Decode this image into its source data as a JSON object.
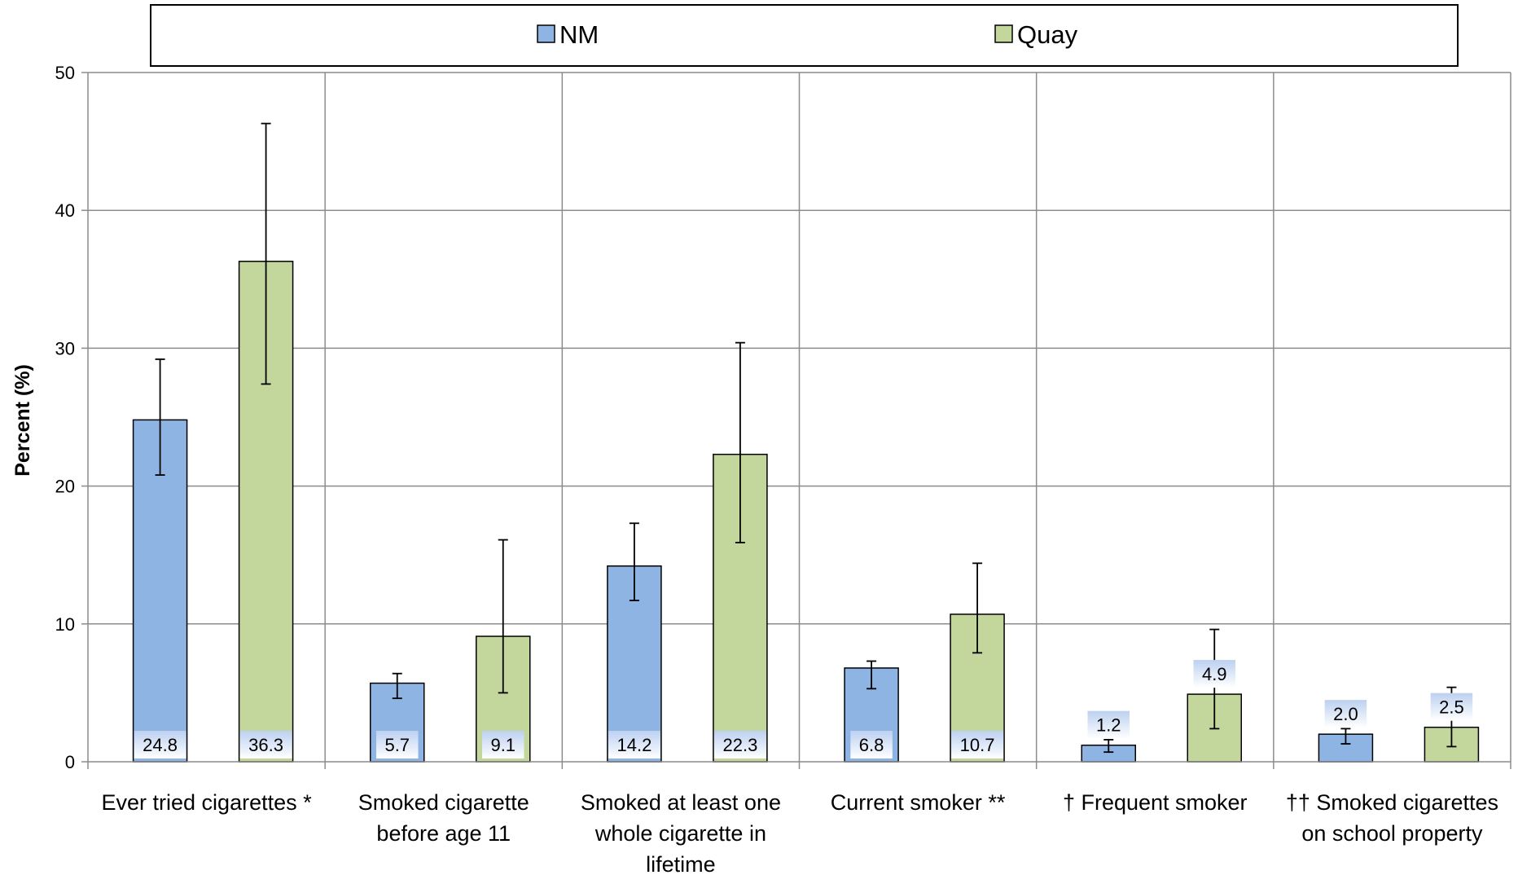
{
  "chart_data": {
    "type": "bar",
    "ylabel": "Percent (%)",
    "ylim": [
      0,
      50
    ],
    "yticks": [
      "0",
      "10",
      "20",
      "30",
      "40",
      "50"
    ],
    "grid": true,
    "legend_position": "top",
    "categories": [
      [
        "Ever tried cigarettes *"
      ],
      [
        "Smoked cigarette",
        "before age 11"
      ],
      [
        "Smoked at least one",
        "whole cigarette in",
        "lifetime"
      ],
      [
        "Current smoker **"
      ],
      [
        "† Frequent smoker"
      ],
      [
        "†† Smoked cigarettes",
        "on school property"
      ]
    ],
    "series": [
      {
        "name": "NM",
        "color": "#8EB4E3",
        "values": [
          24.8,
          5.7,
          14.2,
          6.8,
          1.2,
          2.0
        ],
        "labels": [
          "24.8",
          "5.7",
          "14.2",
          "6.8",
          "1.2",
          "2.0"
        ],
        "error_low": [
          20.8,
          4.6,
          11.7,
          5.3,
          0.7,
          1.3
        ],
        "error_high": [
          29.2,
          6.4,
          17.3,
          7.3,
          1.6,
          2.4
        ]
      },
      {
        "name": "Quay",
        "color": "#C3D69B",
        "values": [
          36.3,
          9.1,
          22.3,
          10.7,
          4.9,
          2.5
        ],
        "labels": [
          "36.3",
          "9.1",
          "22.3",
          "10.7",
          "4.9",
          "2.5"
        ],
        "error_low": [
          27.4,
          5.0,
          15.9,
          7.9,
          2.4,
          1.1
        ],
        "error_high": [
          46.3,
          16.1,
          30.4,
          14.4,
          9.6,
          5.4
        ]
      }
    ]
  }
}
